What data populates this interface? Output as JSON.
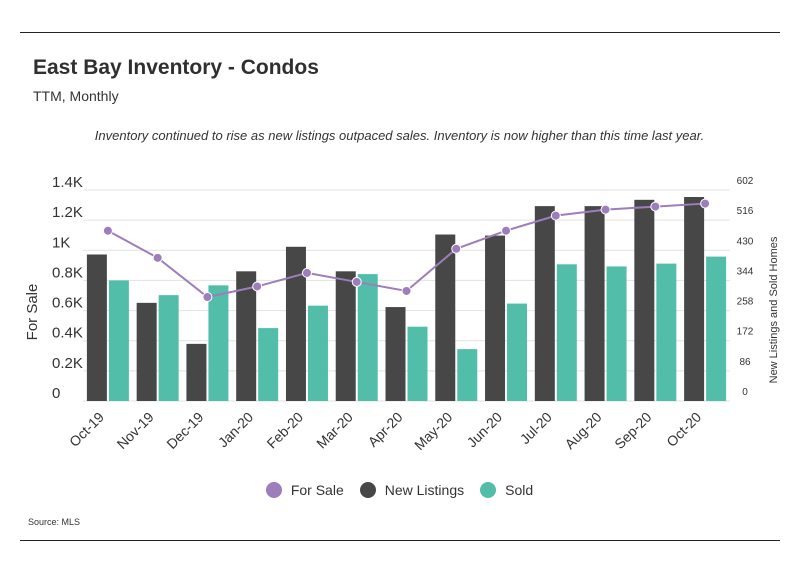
{
  "header": {
    "title": "East Bay Inventory - Condos",
    "subtitle": "TTM, Monthly",
    "annotation": "Inventory continued to rise as new listings outpaced sales. Inventory is now higher than this time last year."
  },
  "footer": {
    "source": "Source:  MLS"
  },
  "colors": {
    "for_sale": "#9d7dbb",
    "new_listings": "#474747",
    "sold": "#52bda8",
    "grid": "#e2e2e2"
  },
  "chart_data": {
    "type": "bar",
    "categories": [
      "Oct-19",
      "Nov-19",
      "Dec-19",
      "Jan-20",
      "Feb-20",
      "Mar-20",
      "Apr-20",
      "May-20",
      "Jun-20",
      "Jul-20",
      "Aug-20",
      "Sep-20",
      "Oct-20"
    ],
    "ylabel_left": "For Sale",
    "ylabel_right": "New Listings and Sold Homes",
    "yticks_left": [
      "0",
      "0.2K",
      "0.4K",
      "0.6K",
      "0.8K",
      "1K",
      "1.2K",
      "1.4K"
    ],
    "yticks_right": [
      "0",
      "86",
      "172",
      "258",
      "344",
      "430",
      "516",
      "602"
    ],
    "ylim_left": [
      0,
      1400
    ],
    "ylim_right": [
      0,
      602
    ],
    "grid": true,
    "legend_position": "bottom",
    "series": [
      {
        "name": "For Sale",
        "type": "line",
        "axis": "left",
        "values": [
          1130,
          950,
          690,
          760,
          850,
          790,
          730,
          1010,
          1130,
          1230,
          1270,
          1290,
          1310
        ]
      },
      {
        "name": "New Listings",
        "type": "bar",
        "axis": "right",
        "values": [
          418,
          280,
          163,
          370,
          440,
          370,
          268,
          475,
          472,
          556,
          556,
          574,
          582
        ]
      },
      {
        "name": "Sold",
        "type": "bar",
        "axis": "right",
        "values": [
          344,
          302,
          330,
          208,
          272,
          362,
          212,
          148,
          278,
          390,
          384,
          392,
          412
        ]
      }
    ]
  }
}
